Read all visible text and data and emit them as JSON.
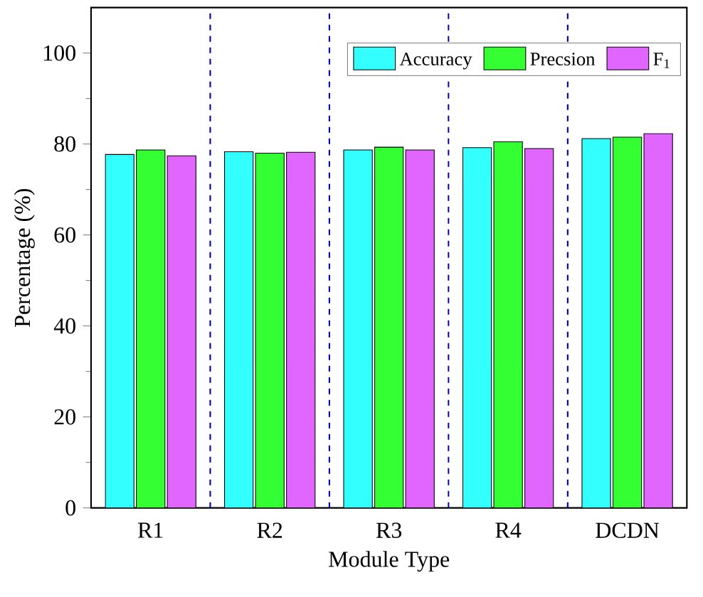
{
  "chart_data": {
    "type": "bar",
    "xlabel": "Module Type",
    "ylabel": "Percentage (%)",
    "categories": [
      "R1",
      "R2",
      "R3",
      "R4",
      "DCDN"
    ],
    "series": [
      {
        "name": "Accuracy",
        "color": "#33ffff",
        "values": [
          77.7,
          78.3,
          78.7,
          79.2,
          81.2
        ]
      },
      {
        "name": "Precsion",
        "color": "#33ff33",
        "values": [
          78.7,
          78.0,
          79.3,
          80.5,
          81.5
        ]
      },
      {
        "name": "F$_{1}$",
        "color": "#e066ff",
        "values": [
          77.4,
          78.2,
          78.7,
          79.0,
          82.3
        ]
      }
    ],
    "ylim": [
      0,
      110
    ],
    "yticks": [
      0,
      20,
      40,
      60,
      80,
      100
    ],
    "legend": "top right",
    "grid": false
  }
}
